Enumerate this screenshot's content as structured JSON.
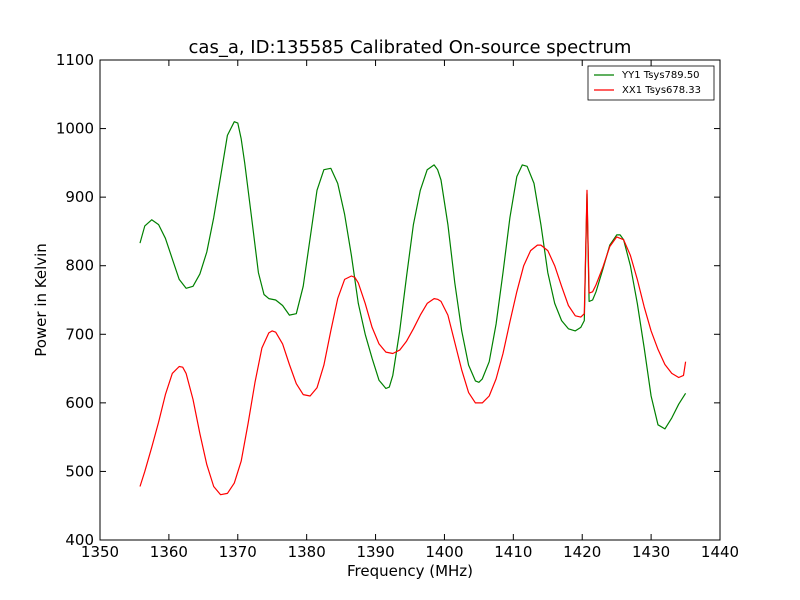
{
  "chart_data": {
    "type": "line",
    "title": "cas_a, ID:135585 Calibrated On-source spectrum",
    "xlabel": "Frequency (MHz)",
    "ylabel": "Power in Kelvin",
    "xlim": [
      1350,
      1440
    ],
    "ylim": [
      400,
      1100
    ],
    "xticks": [
      1350,
      1360,
      1370,
      1380,
      1390,
      1400,
      1410,
      1420,
      1430,
      1440
    ],
    "yticks": [
      400,
      500,
      600,
      700,
      800,
      900,
      1000,
      1100
    ],
    "grid": false,
    "legend_position": "top-right",
    "series": [
      {
        "name": "YY1 Tsys789.50",
        "color": "#008000",
        "x": [
          1355.8,
          1356.5,
          1357.5,
          1358.5,
          1359.5,
          1360.5,
          1361.5,
          1362.5,
          1363.5,
          1364.5,
          1365.5,
          1366.5,
          1367.5,
          1368.5,
          1369.5,
          1370.0,
          1370.5,
          1371.0,
          1372.0,
          1373.0,
          1373.8,
          1374.5,
          1375.5,
          1376.5,
          1377.5,
          1378.5,
          1379.5,
          1380.5,
          1381.5,
          1382.5,
          1383.5,
          1384.5,
          1385.5,
          1386.5,
          1387.5,
          1388.5,
          1389.5,
          1390.5,
          1391.5,
          1392.0,
          1392.5,
          1393.5,
          1394.5,
          1395.5,
          1396.5,
          1397.5,
          1398.5,
          1399.0,
          1399.5,
          1400.5,
          1401.5,
          1402.5,
          1403.5,
          1404.5,
          1405.0,
          1405.5,
          1406.5,
          1407.5,
          1408.5,
          1409.5,
          1410.5,
          1411.3,
          1412.0,
          1413.0,
          1414.0,
          1415.0,
          1416.0,
          1417.0,
          1418.0,
          1419.0,
          1419.8,
          1420.3,
          1420.7,
          1421.0,
          1421.5,
          1422.0,
          1423.0,
          1424.0,
          1425.0,
          1425.5,
          1426.0,
          1427.0,
          1428.0,
          1429.0,
          1430.0,
          1431.0,
          1432.0,
          1433.0,
          1434.0,
          1435.0
        ],
        "y": [
          833,
          858,
          867,
          860,
          840,
          810,
          780,
          767,
          770,
          788,
          820,
          870,
          930,
          990,
          1010,
          1008,
          985,
          950,
          870,
          790,
          758,
          752,
          750,
          742,
          728,
          730,
          770,
          840,
          910,
          940,
          942,
          920,
          875,
          815,
          745,
          700,
          665,
          633,
          621,
          623,
          640,
          705,
          785,
          860,
          910,
          940,
          947,
          940,
          925,
          860,
          775,
          705,
          655,
          632,
          630,
          635,
          660,
          715,
          790,
          870,
          930,
          947,
          945,
          920,
          860,
          790,
          745,
          720,
          708,
          705,
          710,
          720,
          905,
          748,
          750,
          762,
          795,
          830,
          845,
          845,
          838,
          800,
          745,
          680,
          610,
          568,
          562,
          578,
          598,
          614
        ]
      },
      {
        "name": "XX1 Tsys678.33",
        "color": "#ff0000",
        "x": [
          1355.8,
          1356.5,
          1357.5,
          1358.5,
          1359.5,
          1360.5,
          1361.5,
          1362.0,
          1362.5,
          1363.5,
          1364.5,
          1365.5,
          1366.5,
          1367.5,
          1368.5,
          1369.5,
          1370.5,
          1371.5,
          1372.5,
          1373.5,
          1374.5,
          1375.0,
          1375.5,
          1376.5,
          1377.5,
          1378.5,
          1379.5,
          1380.5,
          1381.5,
          1382.5,
          1383.5,
          1384.5,
          1385.5,
          1386.5,
          1387.0,
          1387.5,
          1388.5,
          1389.5,
          1390.5,
          1391.5,
          1392.5,
          1393.5,
          1394.5,
          1395.5,
          1396.5,
          1397.5,
          1398.5,
          1399.0,
          1399.5,
          1400.5,
          1401.5,
          1402.5,
          1403.5,
          1404.5,
          1405.5,
          1406.5,
          1407.5,
          1408.5,
          1409.5,
          1410.5,
          1411.5,
          1412.5,
          1413.5,
          1414.0,
          1415.0,
          1416.0,
          1417.0,
          1418.0,
          1419.0,
          1419.8,
          1420.3,
          1420.7,
          1421.0,
          1421.5,
          1422.0,
          1423.0,
          1424.0,
          1425.0,
          1426.0,
          1427.0,
          1428.0,
          1429.0,
          1430.0,
          1431.0,
          1432.0,
          1433.0,
          1434.0,
          1434.7,
          1435.0
        ],
        "y": [
          478,
          500,
          535,
          572,
          612,
          643,
          653,
          652,
          643,
          605,
          555,
          510,
          478,
          466,
          468,
          483,
          515,
          570,
          630,
          680,
          702,
          705,
          703,
          686,
          656,
          628,
          612,
          610,
          622,
          655,
          705,
          752,
          780,
          785,
          783,
          775,
          745,
          710,
          686,
          674,
          672,
          677,
          690,
          708,
          728,
          745,
          752,
          751,
          748,
          728,
          688,
          648,
          615,
          600,
          600,
          610,
          635,
          672,
          718,
          762,
          800,
          822,
          830,
          830,
          822,
          800,
          770,
          742,
          727,
          725,
          730,
          910,
          760,
          762,
          772,
          798,
          828,
          842,
          838,
          815,
          780,
          740,
          705,
          678,
          656,
          643,
          637,
          640,
          660
        ]
      }
    ]
  }
}
